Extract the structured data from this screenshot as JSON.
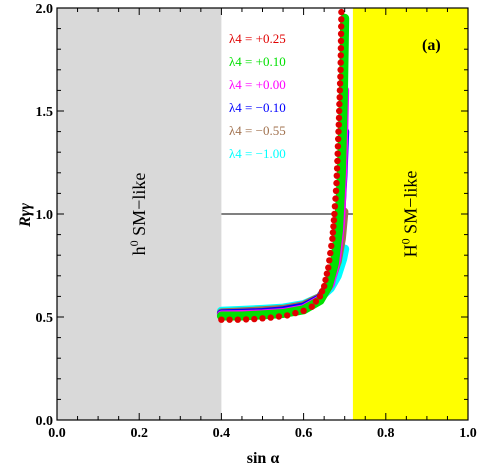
{
  "chart_data": {
    "type": "scatter",
    "title": "",
    "panel_label": "(a)",
    "xlabel": "sin α",
    "ylabel": "Rγγ",
    "xlim": [
      0.0,
      1.0
    ],
    "ylim": [
      0.0,
      2.0
    ],
    "xticks": [
      "0.0",
      "0.2",
      "0.4",
      "0.6",
      "0.8",
      "1.0"
    ],
    "yticks": [
      "0.0",
      "0.5",
      "1.0",
      "1.5",
      "2.0"
    ],
    "grid": false,
    "legend_position": "top-center",
    "reference_line": {
      "y": 1.0,
      "x_range": [
        0.4,
        0.72
      ]
    },
    "regions": [
      {
        "name": "h0 SM-like",
        "label_main": "h",
        "label_sup": "0",
        "label_rest": " SM−like",
        "x_range": [
          0.0,
          0.4
        ],
        "color": "#d9d9d9"
      },
      {
        "name": "H0 SM-like",
        "label_main": "H",
        "label_sup": "0",
        "label_rest": " SM−like",
        "x_range": [
          0.72,
          1.0
        ],
        "color": "#ffff00"
      }
    ],
    "series": [
      {
        "name": "λ4 = +0.25",
        "label": "λ4 = +0.25",
        "color": "#e00000",
        "marker": "dot",
        "points": [
          [
            0.4,
            0.487
          ],
          [
            0.44,
            0.487
          ],
          [
            0.48,
            0.49
          ],
          [
            0.52,
            0.497
          ],
          [
            0.56,
            0.508
          ],
          [
            0.6,
            0.53
          ],
          [
            0.62,
            0.55
          ],
          [
            0.64,
            0.6
          ],
          [
            0.65,
            0.65
          ],
          [
            0.66,
            0.74
          ],
          [
            0.67,
            0.88
          ],
          [
            0.675,
            1.0
          ],
          [
            0.68,
            1.15
          ],
          [
            0.685,
            1.4
          ],
          [
            0.69,
            1.7
          ],
          [
            0.692,
            1.98
          ]
        ]
      },
      {
        "name": "λ4 = +0.10",
        "label": "λ4 = +0.10",
        "color": "#00e000",
        "marker": "band",
        "points": [
          [
            0.4,
            0.505
          ],
          [
            0.45,
            0.505
          ],
          [
            0.5,
            0.51
          ],
          [
            0.55,
            0.517
          ],
          [
            0.6,
            0.535
          ],
          [
            0.64,
            0.58
          ],
          [
            0.66,
            0.65
          ],
          [
            0.675,
            0.76
          ],
          [
            0.685,
            0.92
          ],
          [
            0.692,
            1.2
          ],
          [
            0.697,
            1.6
          ],
          [
            0.7,
            1.95
          ]
        ]
      },
      {
        "name": "λ4 = +0.00",
        "label": "λ4 = +0.00",
        "color": "#ff00ff",
        "marker": "band",
        "points": [
          [
            0.4,
            0.51
          ],
          [
            0.45,
            0.512
          ],
          [
            0.5,
            0.515
          ],
          [
            0.55,
            0.522
          ],
          [
            0.6,
            0.54
          ],
          [
            0.64,
            0.585
          ],
          [
            0.665,
            0.66
          ],
          [
            0.68,
            0.78
          ],
          [
            0.69,
            0.96
          ],
          [
            0.696,
            1.25
          ],
          [
            0.7,
            1.6
          ]
        ]
      },
      {
        "name": "λ4 = −0.10",
        "label": "λ4 = −0.10",
        "color": "#0000ff",
        "marker": "band",
        "points": [
          [
            0.4,
            0.515
          ],
          [
            0.45,
            0.518
          ],
          [
            0.5,
            0.522
          ],
          [
            0.55,
            0.53
          ],
          [
            0.6,
            0.548
          ],
          [
            0.64,
            0.59
          ],
          [
            0.665,
            0.665
          ],
          [
            0.68,
            0.79
          ],
          [
            0.69,
            0.98
          ],
          [
            0.696,
            1.2
          ],
          [
            0.7,
            1.4
          ]
        ]
      },
      {
        "name": "λ4 = −0.55",
        "label": "λ4 = −0.55",
        "color": "#a0714e",
        "marker": "band",
        "points": [
          [
            0.4,
            0.52
          ],
          [
            0.45,
            0.525
          ],
          [
            0.5,
            0.53
          ],
          [
            0.55,
            0.537
          ],
          [
            0.6,
            0.555
          ],
          [
            0.64,
            0.595
          ],
          [
            0.665,
            0.67
          ],
          [
            0.682,
            0.77
          ],
          [
            0.692,
            0.88
          ],
          [
            0.698,
            1.01
          ]
        ]
      },
      {
        "name": "λ4 = −1.00",
        "label": "λ4 = −1.00",
        "color": "#00ffff",
        "marker": "band",
        "points": [
          [
            0.4,
            0.528
          ],
          [
            0.45,
            0.532
          ],
          [
            0.5,
            0.537
          ],
          [
            0.55,
            0.543
          ],
          [
            0.6,
            0.56
          ],
          [
            0.64,
            0.595
          ],
          [
            0.665,
            0.64
          ],
          [
            0.682,
            0.7
          ],
          [
            0.695,
            0.78
          ],
          [
            0.7,
            0.83
          ]
        ]
      }
    ]
  }
}
